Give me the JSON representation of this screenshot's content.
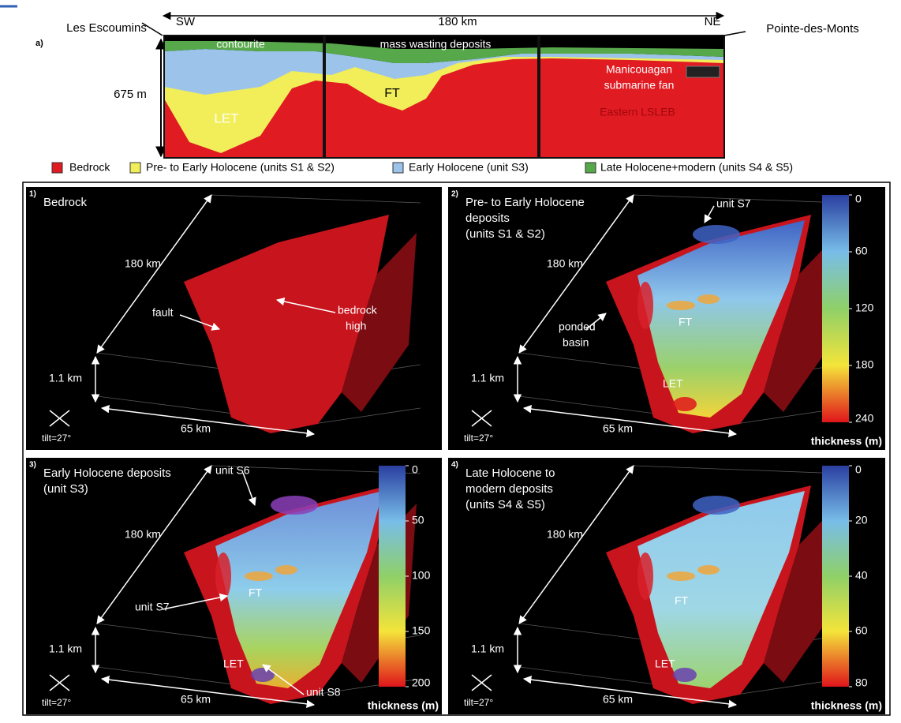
{
  "panel_a": {
    "label": "a)",
    "sw": "SW",
    "distance": "180 km",
    "ne": "NE",
    "left_site": "Les Escoumins",
    "right_site": "Pointe-des-Monts",
    "depth": "675 m",
    "annotations": [
      "contourite",
      "mass wasting deposits",
      "Manicouagan",
      "submarine fan",
      "LET",
      "FT",
      "Eastern LSLEB"
    ],
    "legend": [
      "Bedrock",
      "Pre- to Early Holocene (units S1 & S2)",
      "Early Holocene (unit S3)",
      "Late Holocene+modern (units S4 & S5)"
    ]
  },
  "panels": [
    {
      "label": "1)",
      "title": [
        "Bedrock"
      ],
      "annotations": [
        "fault",
        "bedrock",
        "high"
      ],
      "length": "180 km",
      "height": "1.1 km",
      "width": "65 km",
      "tilt": "tilt=27°"
    },
    {
      "label": "2)",
      "title": [
        "Pre- to Early Holocene",
        "deposits",
        "(units S1 & S2)"
      ],
      "annotations": [
        "unit S7",
        "ponded",
        "basin",
        "FT",
        "LET"
      ],
      "length": "180 km",
      "height": "1.1 km",
      "width": "65 km",
      "tilt": "tilt=27°",
      "colorbar": {
        "ticks": [
          0,
          60,
          120,
          180,
          240
        ],
        "label": "thickness (m)"
      }
    },
    {
      "label": "3)",
      "title": [
        "Early Holocene deposits",
        "(unit S3)"
      ],
      "annotations": [
        "unit S6",
        "unit S7",
        "FT",
        "LET",
        "unit S8"
      ],
      "length": "180 km",
      "height": "1.1 km",
      "width": "65 km",
      "tilt": "tilt=27°",
      "colorbar": {
        "ticks": [
          0,
          50,
          100,
          150,
          200
        ],
        "label": "thickness (m)"
      }
    },
    {
      "label": "4)",
      "title": [
        "Late Holocene to",
        "modern deposits",
        "(units S4 & S5)"
      ],
      "annotations": [
        "FT",
        "LET"
      ],
      "length": "180 km",
      "height": "1.1 km",
      "width": "65 km",
      "tilt": "tilt=27°",
      "colorbar": {
        "ticks": [
          0,
          20,
          40,
          60,
          80
        ],
        "label": "thickness (m)"
      }
    }
  ]
}
